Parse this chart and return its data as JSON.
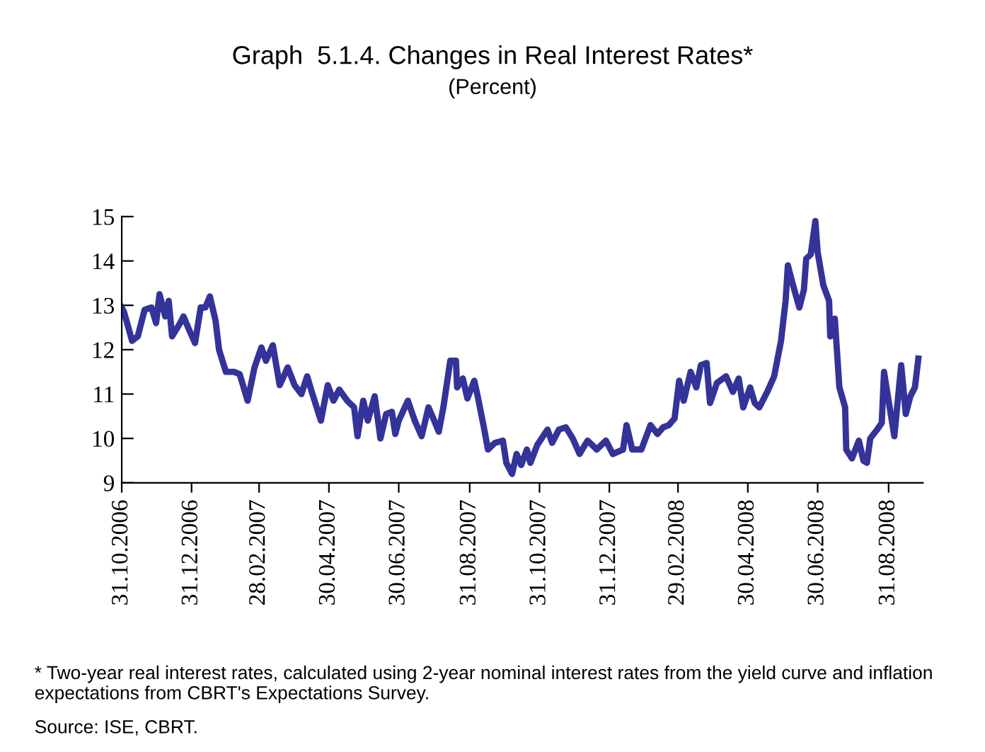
{
  "chart_data": {
    "type": "line",
    "title": "Graph  5.1.4. Changes in Real Interest Rates*",
    "subtitle": "(Percent)",
    "x": [
      "2006-10-31",
      "2006-11-02",
      "2006-11-09",
      "2006-11-14",
      "2006-11-20",
      "2006-11-26",
      "2006-11-30",
      "2006-12-03",
      "2006-12-08",
      "2006-12-11",
      "2006-12-14",
      "2006-12-21",
      "2006-12-24",
      "2006-12-28",
      "2007-01-03",
      "2007-01-08",
      "2007-01-12",
      "2007-01-16",
      "2007-01-21",
      "2007-01-24",
      "2007-01-30",
      "2007-02-06",
      "2007-02-11",
      "2007-02-18",
      "2007-02-24",
      "2007-03-02",
      "2007-03-06",
      "2007-03-12",
      "2007-03-18",
      "2007-03-25",
      "2007-03-31",
      "2007-04-06",
      "2007-04-11",
      "2007-04-15",
      "2007-04-23",
      "2007-04-29",
      "2007-05-04",
      "2007-05-09",
      "2007-05-16",
      "2007-05-22",
      "2007-05-25",
      "2007-05-30",
      "2007-06-03",
      "2007-06-09",
      "2007-06-14",
      "2007-06-19",
      "2007-06-24",
      "2007-06-27",
      "2007-06-30",
      "2007-07-08",
      "2007-07-14",
      "2007-07-20",
      "2007-07-26",
      "2007-07-31",
      "2007-08-04",
      "2007-08-08",
      "2007-08-14",
      "2007-08-19",
      "2007-08-20",
      "2007-08-25",
      "2007-08-29",
      "2007-09-04",
      "2007-09-07",
      "2007-09-12",
      "2007-09-16",
      "2007-09-22",
      "2007-09-29",
      "2007-10-02",
      "2007-10-07",
      "2007-10-11",
      "2007-10-15",
      "2007-10-20",
      "2007-10-23",
      "2007-10-29",
      "2007-11-07",
      "2007-11-11",
      "2007-11-17",
      "2007-11-23",
      "2007-11-29",
      "2007-12-05",
      "2007-12-12",
      "2007-12-20",
      "2007-12-28",
      "2008-01-03",
      "2008-01-12",
      "2008-01-15",
      "2008-01-20",
      "2008-01-28",
      "2008-02-05",
      "2008-02-11",
      "2008-02-16",
      "2008-02-21",
      "2008-02-26",
      "2008-03-01",
      "2008-03-05",
      "2008-03-11",
      "2008-03-16",
      "2008-03-20",
      "2008-03-25",
      "2008-03-28",
      "2008-04-03",
      "2008-04-11",
      "2008-04-17",
      "2008-04-22",
      "2008-04-26",
      "2008-05-02",
      "2008-05-06",
      "2008-05-10",
      "2008-05-17",
      "2008-05-23",
      "2008-05-29",
      "2008-06-02",
      "2008-06-04",
      "2008-06-08",
      "2008-06-14",
      "2008-06-18",
      "2008-06-20",
      "2008-06-24",
      "2008-06-28",
      "2008-06-30",
      "2008-07-05",
      "2008-07-10",
      "2008-07-11",
      "2008-07-15",
      "2008-07-19",
      "2008-07-24",
      "2008-07-25",
      "2008-07-30",
      "2008-08-05",
      "2008-08-09",
      "2008-08-12",
      "2008-08-15",
      "2008-08-21",
      "2008-08-25",
      "2008-08-27",
      "2008-08-31",
      "2008-09-05",
      "2008-09-11",
      "2008-09-15",
      "2008-09-19",
      "2008-09-23",
      "2008-09-26"
    ],
    "series": [
      {
        "color": "#333399",
        "values": [
          12.95,
          12.85,
          12.2,
          12.3,
          12.9,
          12.95,
          12.6,
          13.25,
          12.75,
          13.1,
          12.3,
          12.6,
          12.75,
          12.5,
          12.15,
          12.95,
          12.95,
          13.2,
          12.65,
          12.0,
          11.5,
          11.5,
          11.45,
          10.85,
          11.6,
          12.05,
          11.75,
          12.1,
          11.2,
          11.6,
          11.2,
          11.0,
          11.4,
          11.05,
          10.4,
          11.2,
          10.85,
          11.1,
          10.85,
          10.7,
          10.05,
          10.85,
          10.4,
          10.95,
          10.0,
          10.55,
          10.6,
          10.1,
          10.4,
          10.85,
          10.4,
          10.05,
          10.7,
          10.4,
          10.15,
          10.7,
          11.75,
          11.75,
          11.15,
          11.35,
          10.9,
          11.3,
          10.95,
          10.3,
          9.75,
          9.9,
          9.95,
          9.45,
          9.2,
          9.65,
          9.4,
          9.75,
          9.45,
          9.85,
          10.2,
          9.9,
          10.2,
          10.25,
          10.0,
          9.65,
          9.95,
          9.75,
          9.95,
          9.65,
          9.75,
          10.3,
          9.75,
          9.75,
          10.3,
          10.1,
          10.25,
          10.3,
          10.45,
          11.3,
          10.85,
          11.5,
          11.15,
          11.65,
          11.7,
          10.8,
          11.25,
          11.4,
          11.05,
          11.35,
          10.7,
          11.15,
          10.8,
          10.7,
          11.05,
          11.4,
          12.2,
          13.1,
          13.9,
          13.5,
          12.95,
          13.35,
          14.05,
          14.15,
          14.9,
          14.2,
          13.45,
          13.1,
          12.3,
          12.7,
          11.15,
          10.7,
          9.75,
          9.55,
          9.95,
          9.5,
          9.45,
          10.0,
          10.2,
          10.35,
          11.5,
          10.85,
          10.05,
          11.65,
          10.55,
          10.95,
          11.15,
          11.8
        ]
      }
    ],
    "xlim": [
      "2006-10-31",
      "2008-09-30"
    ],
    "xticks": [
      {
        "value": "2006-10-31",
        "label": "31.10.2006"
      },
      {
        "value": "2006-12-31",
        "label": "31.12.2006"
      },
      {
        "value": "2007-02-28",
        "label": "28.02.2007"
      },
      {
        "value": "2007-04-30",
        "label": "30.04.2007"
      },
      {
        "value": "2007-06-30",
        "label": "30.06.2007"
      },
      {
        "value": "2007-08-31",
        "label": "31.08.2007"
      },
      {
        "value": "2007-10-31",
        "label": "31.10.2007"
      },
      {
        "value": "2007-12-31",
        "label": "31.12.2007"
      },
      {
        "value": "2008-02-29",
        "label": "29.02.2008"
      },
      {
        "value": "2008-04-30",
        "label": "30.04.2008"
      },
      {
        "value": "2008-06-30",
        "label": "30.06.2008"
      },
      {
        "value": "2008-08-31",
        "label": "31.08.2008"
      }
    ],
    "ylim": [
      9,
      15
    ],
    "yticks": [
      9,
      10,
      11,
      12,
      13,
      14,
      15
    ],
    "grid": false,
    "marker": "none",
    "line_style": "solid",
    "annotations": [
      "* Two-year real interest rates, calculated using 2-year nominal interest rates from the yield curve and inflation expectations from CBRT's Expectations Survey.",
      "Source: ISE, CBRT."
    ]
  }
}
